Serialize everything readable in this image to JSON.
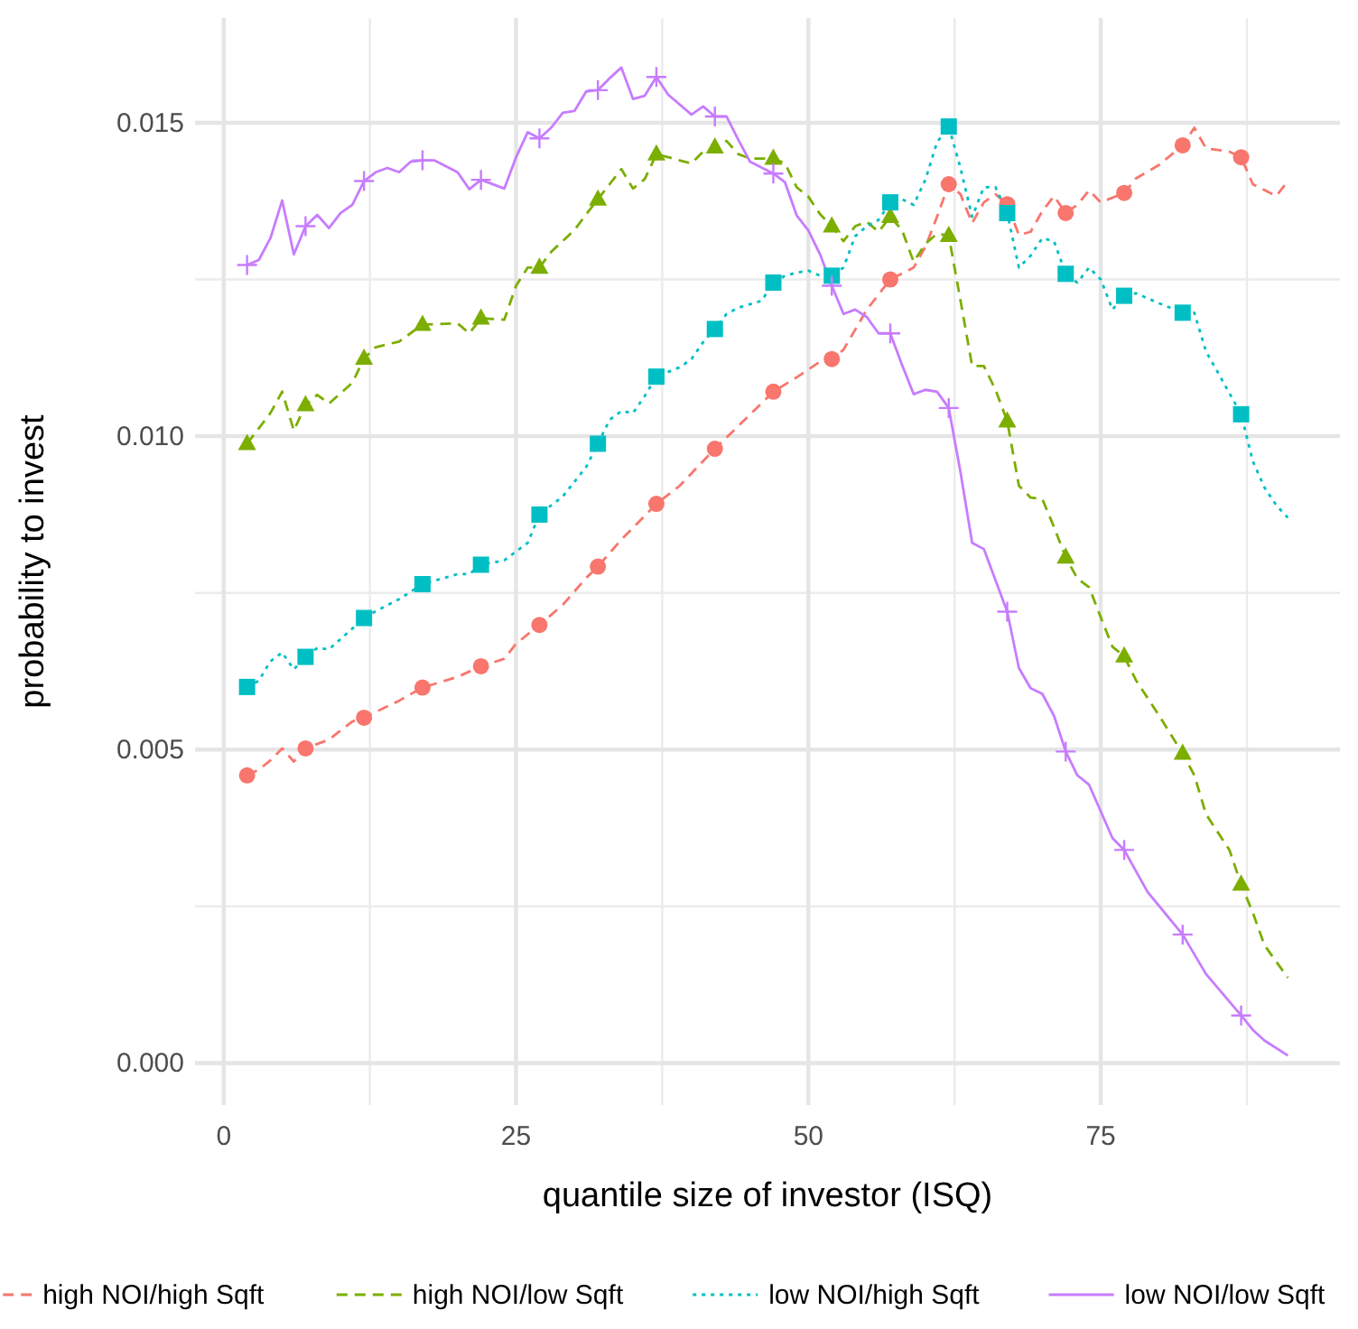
{
  "chart_data": {
    "type": "line",
    "xlabel": "quantile size of investor (ISQ)",
    "ylabel": "probability to invest",
    "xlim": [
      -2.45,
      95.45
    ],
    "ylim": [
      -0.00067,
      0.01667
    ],
    "xticks": [
      0,
      25,
      50,
      75
    ],
    "yticks": [
      {
        "value": 0,
        "label": "0.000"
      },
      {
        "value": 0.005,
        "label": "0.005"
      },
      {
        "value": 0.01,
        "label": "0.010"
      },
      {
        "value": 0.015,
        "label": "0.015"
      }
    ],
    "grid": true,
    "legend": "bottom",
    "series": [
      {
        "type": "scatter",
        "color": "#f8766d",
        "marker": "circle",
        "x": [
          2,
          7,
          12,
          17,
          22,
          27,
          32,
          37,
          42,
          47,
          52,
          57,
          62,
          67,
          72,
          77,
          82,
          87
        ],
        "values": [
          0.00459,
          0.00502,
          0.00551,
          0.00599,
          0.00633,
          0.00699,
          0.00792,
          0.00892,
          0.0098,
          0.01071,
          0.01123,
          0.0125,
          0.01402,
          0.0137,
          0.01356,
          0.01388,
          0.01464,
          0.01445
        ]
      },
      {
        "type": "scatter",
        "color": "#7cae00",
        "marker": "triangle",
        "x": [
          2,
          7,
          12,
          17,
          22,
          27,
          32,
          37,
          42,
          47,
          52,
          57,
          62,
          67,
          72,
          77,
          82,
          87
        ],
        "values": [
          0.00988,
          0.0105,
          0.01124,
          0.01178,
          0.01188,
          0.01269,
          0.01378,
          0.0145,
          0.01461,
          0.01443,
          0.01335,
          0.0135,
          0.0132,
          0.01024,
          0.00807,
          0.00649,
          0.00494,
          0.00285
        ]
      },
      {
        "type": "scatter",
        "color": "#00bfc4",
        "marker": "square",
        "x": [
          2,
          7,
          12,
          17,
          22,
          27,
          32,
          37,
          42,
          47,
          52,
          57,
          62,
          67,
          72,
          77,
          82,
          87
        ],
        "values": [
          0.006,
          0.00648,
          0.0071,
          0.00764,
          0.00795,
          0.00875,
          0.00988,
          0.01095,
          0.01171,
          0.01245,
          0.01256,
          0.01373,
          0.01494,
          0.01356,
          0.01259,
          0.01224,
          0.01197,
          0.01035
        ]
      },
      {
        "type": "scatter",
        "color": "#c77cff",
        "marker": "cross",
        "x": [
          2,
          7,
          12,
          17,
          22,
          27,
          32,
          37,
          42,
          47,
          52,
          57,
          62,
          67,
          72,
          77,
          82,
          87
        ],
        "values": [
          0.01273,
          0.01335,
          0.01407,
          0.0144,
          0.01409,
          0.01475,
          0.01552,
          0.01573,
          0.0151,
          0.01419,
          0.0124,
          0.01164,
          0.01045,
          0.0072,
          0.00497,
          0.0034,
          0.00205,
          0.00076
        ]
      },
      {
        "name": "high NOI/high Sqft",
        "color": "#f8766d",
        "line_style": "dashed",
        "x": [
          2,
          3,
          4,
          5,
          6,
          7,
          9,
          11,
          12,
          15,
          17,
          20,
          22,
          24,
          25,
          27,
          29,
          31,
          32,
          34,
          37,
          39,
          42,
          44,
          47,
          49,
          51,
          52,
          53,
          55,
          57,
          59,
          60,
          61,
          62,
          63,
          64,
          65,
          66,
          67,
          68,
          69,
          70,
          71,
          72,
          73,
          74,
          75,
          77,
          78,
          80,
          82,
          83,
          84,
          86,
          87,
          88,
          90,
          91
        ],
        "values": [
          0.00459,
          0.00468,
          0.00483,
          0.00502,
          0.00481,
          0.00502,
          0.00516,
          0.00545,
          0.00551,
          0.00578,
          0.00599,
          0.00616,
          0.00633,
          0.00645,
          0.00669,
          0.00699,
          0.00731,
          0.00774,
          0.00792,
          0.00835,
          0.00892,
          0.00921,
          0.0098,
          0.01016,
          0.01071,
          0.01094,
          0.01119,
          0.01123,
          0.01138,
          0.01202,
          0.0125,
          0.01269,
          0.01302,
          0.0135,
          0.01402,
          0.01386,
          0.0134,
          0.01373,
          0.01386,
          0.0137,
          0.01321,
          0.01326,
          0.01359,
          0.01383,
          0.01356,
          0.01369,
          0.01392,
          0.01373,
          0.01388,
          0.01411,
          0.01433,
          0.01464,
          0.01492,
          0.01459,
          0.01454,
          0.01445,
          0.01402,
          0.01383,
          0.01407
        ]
      },
      {
        "name": "high NOI/low Sqft",
        "color": "#7cae00",
        "line_style": "dashed",
        "x": [
          2,
          4,
          5,
          6,
          7,
          8,
          9,
          11,
          12,
          13,
          15,
          17,
          20,
          21,
          22,
          24,
          25,
          26,
          27,
          28,
          30,
          31,
          32,
          33,
          34,
          35,
          36,
          37,
          40,
          41,
          42,
          43,
          44,
          45,
          47,
          48,
          49,
          50,
          51,
          52,
          53,
          54,
          55,
          56,
          57,
          58,
          59,
          60,
          61,
          62,
          63,
          64,
          65,
          66,
          67,
          68,
          69,
          70,
          71,
          72,
          73,
          74,
          75,
          76,
          77,
          78,
          80,
          82,
          83,
          84,
          86,
          87,
          88,
          89,
          91
        ],
        "values": [
          0.00988,
          0.01037,
          0.01071,
          0.01009,
          0.0105,
          0.01066,
          0.01052,
          0.01085,
          0.01124,
          0.01142,
          0.01151,
          0.01178,
          0.0118,
          0.01164,
          0.01188,
          0.01186,
          0.0124,
          0.01269,
          0.01269,
          0.01294,
          0.01329,
          0.01354,
          0.01378,
          0.01402,
          0.01426,
          0.01395,
          0.0141,
          0.0145,
          0.01435,
          0.01454,
          0.01461,
          0.01471,
          0.0145,
          0.01443,
          0.01443,
          0.01435,
          0.01397,
          0.01382,
          0.01354,
          0.01335,
          0.01311,
          0.01335,
          0.01342,
          0.01326,
          0.0135,
          0.01329,
          0.01278,
          0.01307,
          0.01323,
          0.0132,
          0.01217,
          0.01112,
          0.01112,
          0.01074,
          0.01024,
          0.00921,
          0.00902,
          0.009,
          0.00855,
          0.00807,
          0.00773,
          0.00759,
          0.00711,
          0.00664,
          0.00649,
          0.00611,
          0.00554,
          0.00494,
          0.00459,
          0.00397,
          0.0034,
          0.00285,
          0.0024,
          0.00188,
          0.00136
        ]
      },
      {
        "name": "low NOI/high Sqft",
        "color": "#00bfc4",
        "line_style": "dotted",
        "x": [
          2,
          3,
          4,
          5,
          6,
          7,
          8,
          9,
          11,
          12,
          13,
          15,
          17,
          20,
          21,
          22,
          24,
          26,
          27,
          29,
          31,
          32,
          33,
          34,
          35,
          36,
          37,
          39,
          40,
          41,
          42,
          43,
          44,
          46,
          47,
          48,
          49,
          50,
          51,
          52,
          53,
          54,
          55,
          56,
          57,
          58,
          59,
          60,
          61,
          62,
          63,
          64,
          65,
          66,
          67,
          68,
          69,
          70,
          71,
          72,
          73,
          74,
          75,
          76,
          77,
          78,
          80,
          82,
          83,
          84,
          85,
          87,
          88,
          89,
          90,
          91
        ],
        "values": [
          0.006,
          0.0061,
          0.00641,
          0.00655,
          0.00628,
          0.00648,
          0.00662,
          0.0066,
          0.00693,
          0.0071,
          0.00721,
          0.0074,
          0.00764,
          0.0078,
          0.0078,
          0.00795,
          0.00802,
          0.0083,
          0.00875,
          0.00904,
          0.00951,
          0.00988,
          0.01026,
          0.0104,
          0.01037,
          0.01064,
          0.01095,
          0.0111,
          0.01123,
          0.0115,
          0.01171,
          0.01195,
          0.01205,
          0.01216,
          0.01245,
          0.01256,
          0.01261,
          0.01264,
          0.01256,
          0.01256,
          0.01269,
          0.01319,
          0.01335,
          0.01345,
          0.01373,
          0.01378,
          0.01369,
          0.01409,
          0.01469,
          0.01494,
          0.01428,
          0.0135,
          0.01397,
          0.01397,
          0.01356,
          0.01269,
          0.01288,
          0.01316,
          0.01311,
          0.01259,
          0.01245,
          0.01269,
          0.0125,
          0.01202,
          0.01224,
          0.01228,
          0.01212,
          0.01197,
          0.01197,
          0.01135,
          0.01102,
          0.01035,
          0.0096,
          0.00918,
          0.0089,
          0.0087
        ]
      },
      {
        "name": "low NOI/low Sqft",
        "color": "#c77cff",
        "line_style": "solid",
        "x": [
          2,
          3,
          4,
          5,
          6,
          7,
          8,
          9,
          10,
          11,
          12,
          13,
          14,
          15,
          16,
          17,
          18,
          20,
          21,
          22,
          24,
          25,
          26,
          27,
          28,
          29,
          30,
          31,
          32,
          33,
          34,
          35,
          36,
          37,
          38,
          40,
          41,
          42,
          43,
          44,
          45,
          47,
          48,
          49,
          50,
          51,
          52,
          53,
          54,
          55,
          56,
          57,
          58,
          59,
          60,
          61,
          62,
          63,
          64,
          65,
          66,
          67,
          68,
          69,
          70,
          71,
          72,
          73,
          74,
          76,
          77,
          79,
          82,
          84,
          87,
          88,
          89,
          91
        ],
        "values": [
          0.01273,
          0.01281,
          0.01316,
          0.01376,
          0.0129,
          0.01335,
          0.01353,
          0.01332,
          0.01356,
          0.01369,
          0.01407,
          0.01421,
          0.01428,
          0.01421,
          0.01438,
          0.0144,
          0.0144,
          0.01421,
          0.01394,
          0.01409,
          0.01395,
          0.01445,
          0.01485,
          0.01475,
          0.01492,
          0.01516,
          0.01519,
          0.0155,
          0.01552,
          0.01571,
          0.01588,
          0.01538,
          0.01543,
          0.01573,
          0.01545,
          0.01513,
          0.01526,
          0.0151,
          0.0151,
          0.01473,
          0.01438,
          0.01419,
          0.01405,
          0.01352,
          0.01328,
          0.0129,
          0.0124,
          0.01195,
          0.01202,
          0.0119,
          0.01164,
          0.01164,
          0.01114,
          0.01067,
          0.01074,
          0.01071,
          0.01045,
          0.00943,
          0.0083,
          0.0082,
          0.0077,
          0.0072,
          0.0063,
          0.00598,
          0.00589,
          0.00554,
          0.00497,
          0.00459,
          0.00444,
          0.00359,
          0.0034,
          0.00273,
          0.00205,
          0.00142,
          0.00076,
          0.00053,
          0.00036,
          0.00012
        ]
      }
    ]
  }
}
